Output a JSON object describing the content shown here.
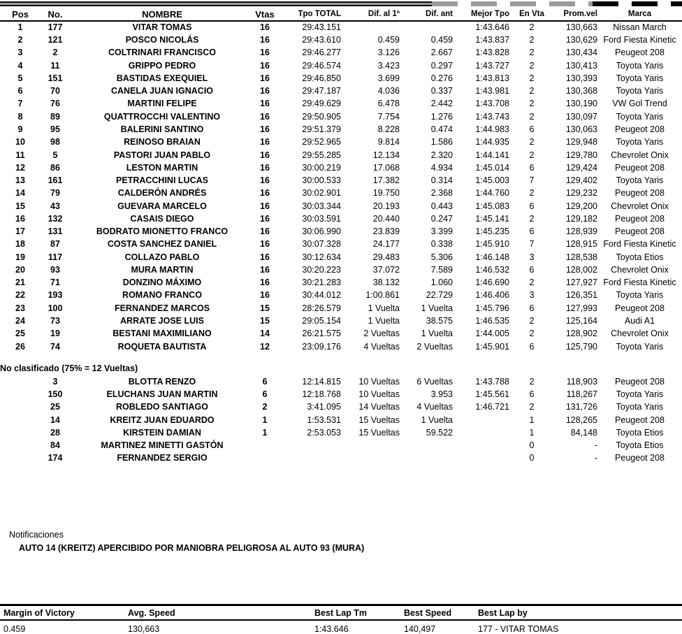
{
  "colors": {
    "text": "#000000",
    "bar_gray": "#9b9b9b",
    "bar_black": "#050505"
  },
  "table": {
    "headers": [
      "Pos",
      "No.",
      "NOMBRE",
      "Vtas",
      "Tpo TOTAL",
      "Dif. al 1º",
      "Dif. ant",
      "Mejor Tpo",
      "En Vta",
      "Prom.vel",
      "Marca"
    ],
    "classified": [
      [
        "1",
        "177",
        "VITAR TOMAS",
        "16",
        "29:43.151",
        "",
        "",
        "1:43.646",
        "2",
        "130,663",
        "Nissan March"
      ],
      [
        "2",
        "121",
        "POSCO NICOLÁS",
        "16",
        "29:43.610",
        "0.459",
        "0.459",
        "1:43.837",
        "2",
        "130,629",
        "Ford Fiesta Kinetic"
      ],
      [
        "3",
        "2",
        "COLTRINARI FRANCISCO",
        "16",
        "29:46.277",
        "3.126",
        "2.667",
        "1:43.828",
        "2",
        "130,434",
        "Peugeot 208"
      ],
      [
        "4",
        "11",
        "GRIPPO PEDRO",
        "16",
        "29:46.574",
        "3.423",
        "0.297",
        "1:43.727",
        "2",
        "130,413",
        "Toyota Yaris"
      ],
      [
        "5",
        "151",
        "BASTIDAS EXEQUIEL",
        "16",
        "29:46.850",
        "3.699",
        "0.276",
        "1:43.813",
        "2",
        "130,393",
        "Toyota Yaris"
      ],
      [
        "6",
        "70",
        "CANELA JUAN IGNACIO",
        "16",
        "29:47.187",
        "4.036",
        "0.337",
        "1:43.981",
        "2",
        "130,368",
        "Toyota Yaris"
      ],
      [
        "7",
        "76",
        "MARTINI FELIPE",
        "16",
        "29:49.629",
        "6.478",
        "2.442",
        "1:43.708",
        "2",
        "130,190",
        "VW Gol Trend"
      ],
      [
        "8",
        "89",
        "QUATTROCCHI VALENTINO",
        "16",
        "29:50.905",
        "7.754",
        "1.276",
        "1:43.743",
        "2",
        "130,097",
        "Toyota Yaris"
      ],
      [
        "9",
        "95",
        "BALERINI SANTINO",
        "16",
        "29:51.379",
        "8.228",
        "0.474",
        "1:44.983",
        "6",
        "130,063",
        "Peugeot 208"
      ],
      [
        "10",
        "98",
        "REINOSO BRAIAN",
        "16",
        "29:52.965",
        "9.814",
        "1.586",
        "1:44.935",
        "2",
        "129,948",
        "Toyota Yaris"
      ],
      [
        "11",
        "5",
        "PASTORI JUAN PABLO",
        "16",
        "29:55.285",
        "12.134",
        "2.320",
        "1:44.141",
        "2",
        "129,780",
        "Chevrolet Onix"
      ],
      [
        "12",
        "86",
        "LESTON MARTIN",
        "16",
        "30:00.219",
        "17.068",
        "4.934",
        "1:45.014",
        "6",
        "129,424",
        "Peugeot 208"
      ],
      [
        "13",
        "161",
        "PETRACCHINI LUCAS",
        "16",
        "30:00.533",
        "17.382",
        "0.314",
        "1:45.003",
        "7",
        "129,402",
        "Toyota Yaris"
      ],
      [
        "14",
        "79",
        "CALDERÓN ANDRÉS",
        "16",
        "30:02.901",
        "19.750",
        "2.368",
        "1:44.760",
        "2",
        "129,232",
        "Peugeot 208"
      ],
      [
        "15",
        "43",
        "GUEVARA MARCELO",
        "16",
        "30:03.344",
        "20.193",
        "0.443",
        "1:45.083",
        "6",
        "129,200",
        "Chevrolet Onix"
      ],
      [
        "16",
        "132",
        "CASAIS DIEGO",
        "16",
        "30:03.591",
        "20.440",
        "0.247",
        "1:45.141",
        "2",
        "129,182",
        "Peugeot 208"
      ],
      [
        "17",
        "131",
        "BODRATO MIONETTO FRANCO",
        "16",
        "30:06.990",
        "23.839",
        "3.399",
        "1:45.235",
        "6",
        "128,939",
        "Peugeot 208"
      ],
      [
        "18",
        "87",
        "COSTA SANCHEZ DANIEL",
        "16",
        "30:07.328",
        "24.177",
        "0.338",
        "1:45.910",
        "7",
        "128,915",
        "Ford Fiesta Kinetic"
      ],
      [
        "19",
        "117",
        "COLLAZO PABLO",
        "16",
        "30:12.634",
        "29.483",
        "5.306",
        "1:46.148",
        "3",
        "128,538",
        "Toyota Etios"
      ],
      [
        "20",
        "93",
        "MURA MARTIN",
        "16",
        "30:20.223",
        "37.072",
        "7.589",
        "1:46.532",
        "6",
        "128,002",
        "Chevrolet Onix"
      ],
      [
        "21",
        "71",
        "DONZINO MÁXIMO",
        "16",
        "30:21.283",
        "38.132",
        "1.060",
        "1:46.690",
        "2",
        "127,927",
        "Ford Fiesta Kinetic"
      ],
      [
        "22",
        "193",
        "ROMANO FRANCO",
        "16",
        "30:44.012",
        "1:00.861",
        "22.729",
        "1:46.406",
        "3",
        "126,351",
        "Toyota Yaris"
      ],
      [
        "23",
        "100",
        "FERNANDEZ MARCOS",
        "15",
        "28:26.579",
        "1 Vuelta",
        "1 Vuelta",
        "1:45.796",
        "6",
        "127,993",
        "Peugeot 208"
      ],
      [
        "24",
        "73",
        "ARRATE JOSE LUIS",
        "15",
        "29:05.154",
        "1 Vuelta",
        "38.575",
        "1:46.535",
        "2",
        "125,164",
        "Audi A1"
      ],
      [
        "25",
        "19",
        "BESTANI MAXIMILIANO",
        "14",
        "26:21.575",
        "2 Vueltas",
        "1 Vuelta",
        "1:44.005",
        "2",
        "128,902",
        "Chevrolet Onix"
      ],
      [
        "26",
        "74",
        "ROQUETA BAUTISTA",
        "12",
        "23:09.176",
        "4 Vueltas",
        "2 Vueltas",
        "1:45.901",
        "6",
        "125,790",
        "Toyota Yaris"
      ]
    ],
    "unclassified_label": "No clasificado (75% = 12 Vueltas)",
    "unclassified": [
      [
        "",
        "3",
        "BLOTTA RENZO",
        "6",
        "12:14.815",
        "10 Vueltas",
        "6 Vueltas",
        "1:43.788",
        "2",
        "118,903",
        "Peugeot 208"
      ],
      [
        "",
        "150",
        "ELUCHANS JUAN MARTIN",
        "6",
        "12:18.768",
        "10 Vueltas",
        "3.953",
        "1:45.561",
        "6",
        "118,267",
        "Toyota Yaris"
      ],
      [
        "",
        "25",
        "ROBLEDO SANTIAGO",
        "2",
        "3:41.095",
        "14 Vueltas",
        "4 Vueltas",
        "1:46.721",
        "2",
        "131,726",
        "Toyota Yaris"
      ],
      [
        "",
        "14",
        "KREITZ JUAN EDUARDO",
        "1",
        "1:53.531",
        "15 Vueltas",
        "1 Vuelta",
        "",
        "1",
        "128,265",
        "Peugeot 208"
      ],
      [
        "",
        "28",
        "KIRSTEIN DAMIAN",
        "1",
        "2:53.053",
        "15 Vueltas",
        "59.522",
        "",
        "1",
        "84,148",
        "Toyota Etios"
      ],
      [
        "",
        "84",
        "MARTINEZ MINETTI GASTÓN",
        "",
        "",
        "",
        "",
        "",
        "0",
        "-",
        "Toyota Etios"
      ],
      [
        "",
        "174",
        "FERNANDEZ SERGIO",
        "",
        "",
        "",
        "",
        "",
        "0",
        "-",
        "Peugeot 208"
      ]
    ]
  },
  "notifications": {
    "title": "Notificaciones",
    "items": [
      "AUTO 14 (KREITZ) APERCIBIDO POR MANIOBRA PELIGROSA AL AUTO 93 (MURA)"
    ]
  },
  "summary": {
    "headers": [
      "Margin of Victory",
      "Avg. Speed",
      "Best Lap Tm",
      "Best Speed",
      "Best Lap by"
    ],
    "values": [
      "0.459",
      "130,663",
      "1:43.646",
      "140,497",
      "177 - VITAR TOMAS"
    ]
  }
}
